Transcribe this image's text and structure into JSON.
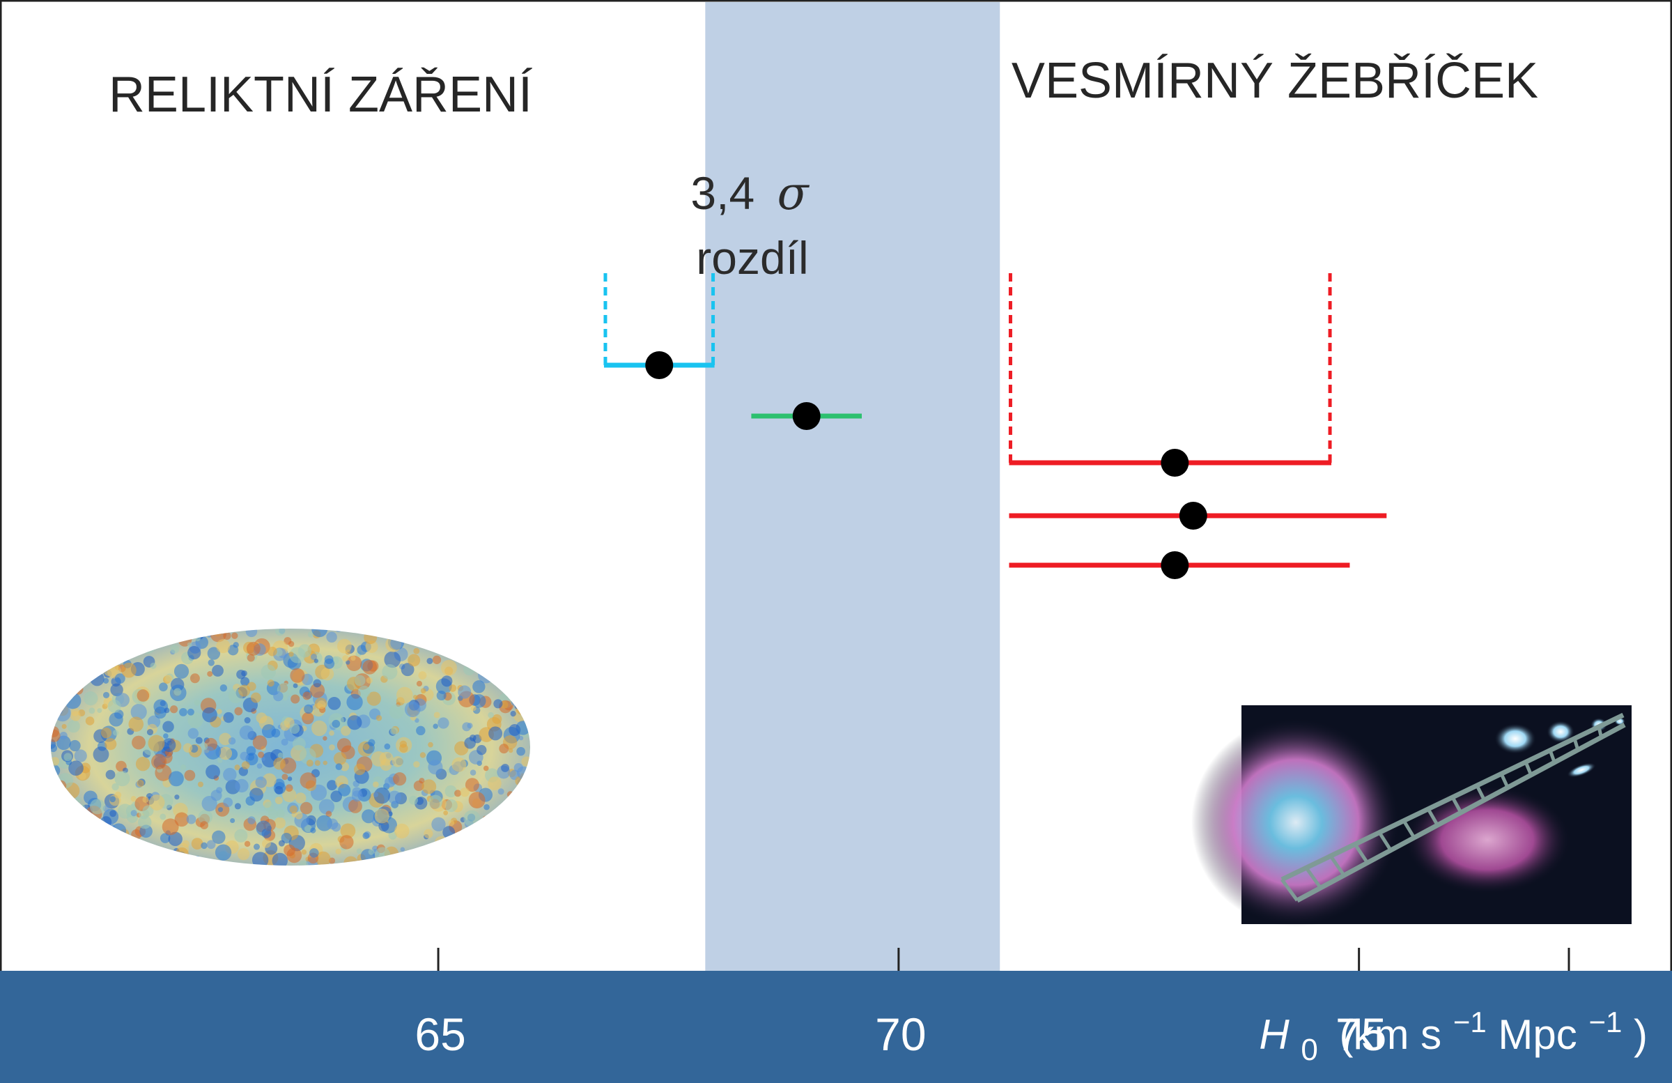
{
  "chart_data": {
    "type": "scatter",
    "xlabel": {
      "symbol": "H",
      "subscript": "0",
      "units_open": "(km s",
      "units_exp1": "−1",
      "units_mid": " Mpc",
      "units_exp2": "−1",
      "units_close": ")"
    },
    "xlim": [
      60.24,
      78.4
    ],
    "xticks": [
      65,
      70,
      75
    ],
    "xtick_labels": [
      "65",
      "70",
      "75"
    ],
    "left_heading": "RELIKTNÍ ZÁŘENÍ",
    "right_heading": "VESMÍRNÝ ŽEBŘÍČEK",
    "tension_band": {
      "x_range": [
        67.9,
        71.1
      ],
      "label_line1": "3,4",
      "label_sigma": "σ",
      "label_line2": "rozdíl",
      "color": "#bfd0e5"
    },
    "series": [
      {
        "group": "cmb",
        "color": "#19c3f0",
        "points": [
          {
            "x": 67.4,
            "xerr_low": 0.6,
            "xerr_high": 0.6,
            "one_sided_bounds": true,
            "row": 1
          }
        ]
      },
      {
        "group": "intermediate",
        "color": "#2cc06f",
        "points": [
          {
            "x": 69.0,
            "xerr_low": 0.6,
            "xerr_high": 0.6,
            "one_sided_bounds": false,
            "row": 2
          }
        ]
      },
      {
        "group": "distance-ladder",
        "color": "#ee1c24",
        "points": [
          {
            "x": 73.0,
            "xerr_low": 1.8,
            "xerr_high": 1.7,
            "one_sided_bounds": true,
            "row": 3
          },
          {
            "x": 73.2,
            "xerr_low": 2.0,
            "xerr_high": 2.1,
            "one_sided_bounds": false,
            "row": 4
          },
          {
            "x": 73.0,
            "xerr_low": 1.8,
            "xerr_high": 1.9,
            "one_sided_bounds": false,
            "row": 5
          }
        ]
      }
    ],
    "grid": false,
    "colors": {
      "axis_band": "#336699",
      "marker": "#000000"
    }
  }
}
